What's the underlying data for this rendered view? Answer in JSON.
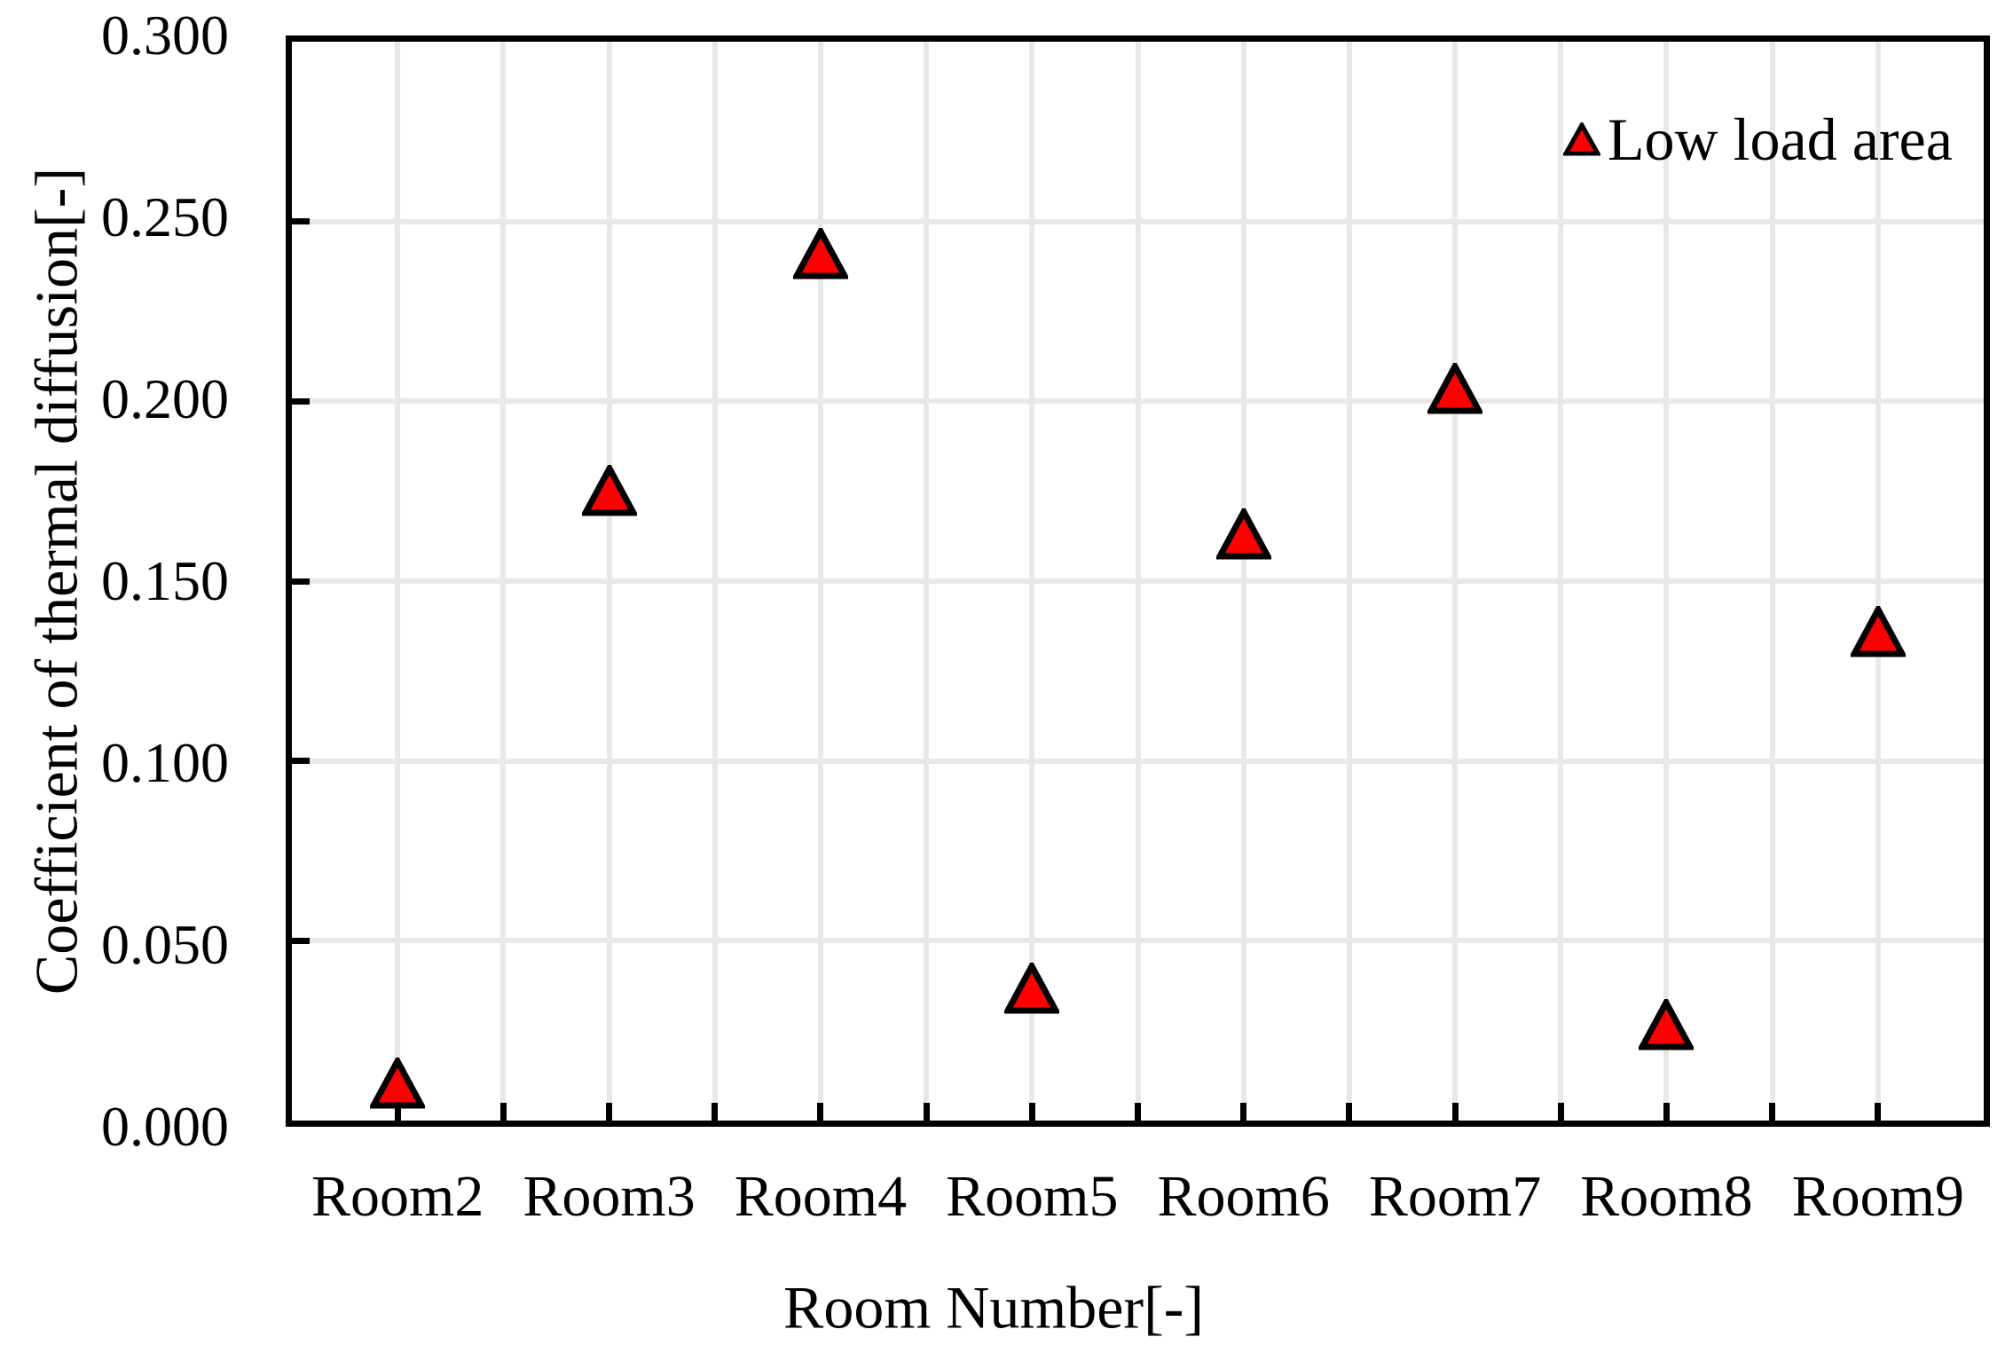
{
  "chart_data": {
    "type": "scatter",
    "title": "",
    "xlabel": "Room Number[-]",
    "ylabel": "Coefficient of thermal diffusion[-]",
    "categories": [
      "Room2",
      "Room3",
      "Room4",
      "Room5",
      "Room6",
      "Room7",
      "Room8",
      "Room9"
    ],
    "series": [
      {
        "name": "Low load area",
        "values": [
          0.012,
          0.175,
          0.24,
          0.038,
          0.163,
          0.203,
          0.028,
          0.136
        ]
      }
    ],
    "ylim": [
      0.0,
      0.3
    ],
    "y_tick_step": 0.05,
    "y_tick_labels": [
      "0.000",
      "0.050",
      "0.100",
      "0.150",
      "0.200",
      "0.250",
      "0.300"
    ],
    "grid": true,
    "legend_position": "top-right",
    "marker_shape": "triangle-up",
    "colors": {
      "marker_fill": "#ff0000",
      "marker_stroke": "#000000",
      "gridline": "#e8e8e8",
      "axis": "#000000",
      "background": "#ffffff"
    }
  }
}
